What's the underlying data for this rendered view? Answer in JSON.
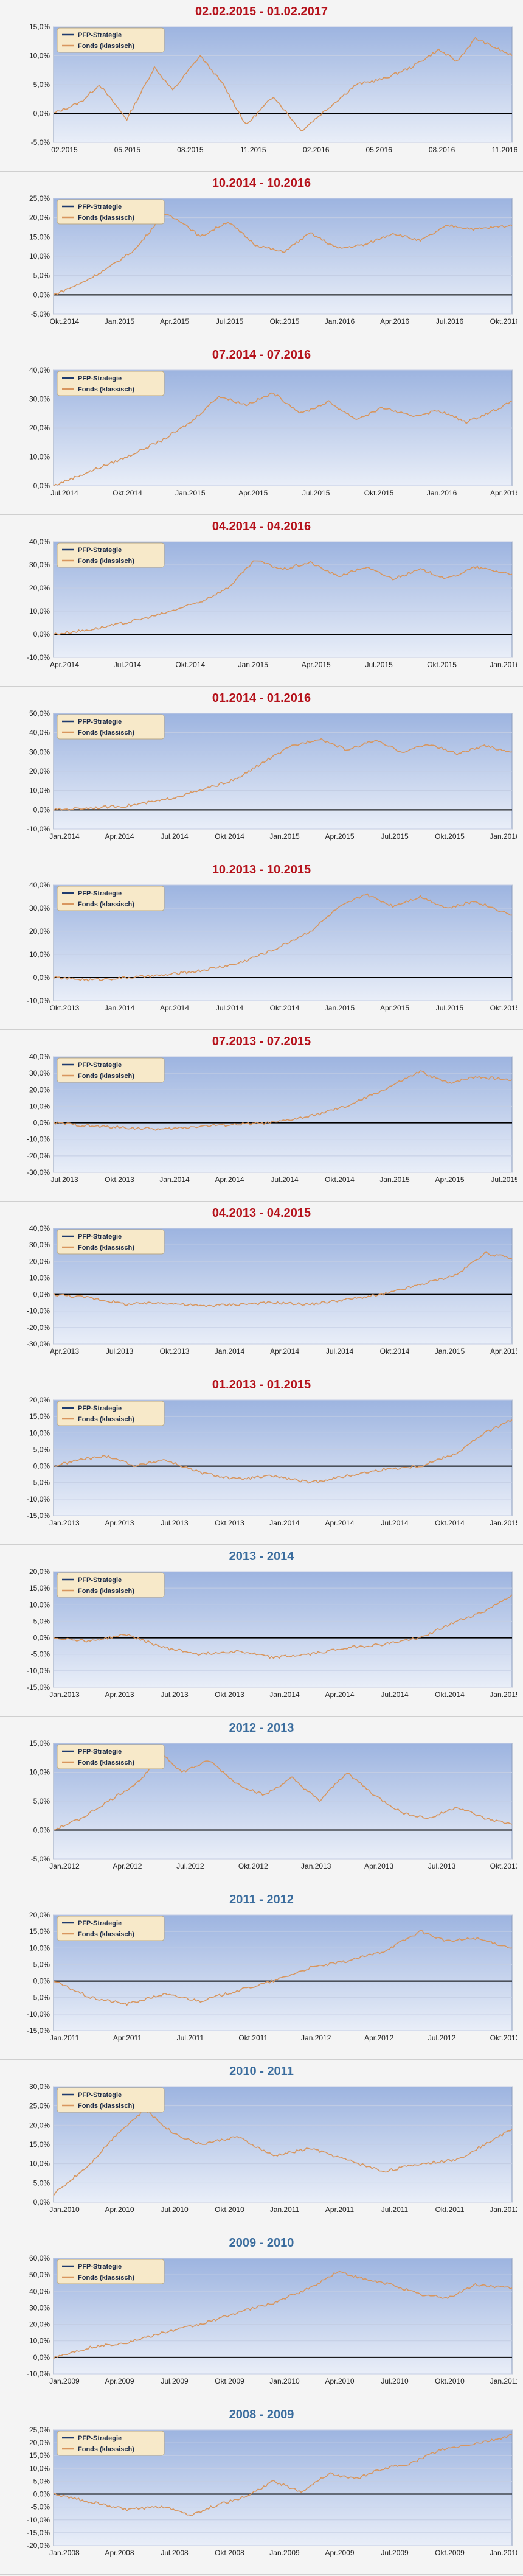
{
  "legend": {
    "strategy": "PFP-Strategie",
    "fund": "Fonds (klassisch)"
  },
  "colors": {
    "title_red": "#b5121b",
    "title_blue": "#3b6d9e",
    "fund_line": "#d8965e",
    "strategy_line": "#1f3b6e",
    "plot_top": "#9db4e0",
    "plot_bottom": "#e9eef8"
  },
  "chart_data": [
    {
      "type": "line",
      "title": "02.02.2015 - 01.02.2017",
      "title_color": "red",
      "yticks": [
        "-5,0%",
        "0,0%",
        "5,0%",
        "10,0%",
        "15,0%"
      ],
      "ylim": [
        -5,
        15
      ],
      "xticks": [
        "02.2015",
        "05.2015",
        "08.2015",
        "11.2015",
        "02.2016",
        "05.2016",
        "08.2016",
        "11.2016"
      ],
      "series": [
        {
          "name": "Fonds (klassisch)",
          "x": [
            0,
            6,
            10,
            16,
            22,
            26,
            32,
            37,
            42,
            48,
            54,
            60,
            66,
            72,
            78,
            84,
            88,
            92,
            100
          ],
          "y": [
            0,
            2,
            5,
            -1,
            8,
            4,
            10,
            5,
            -2,
            3,
            -3,
            1,
            5,
            6,
            8,
            11,
            9,
            13,
            10
          ]
        }
      ]
    },
    {
      "type": "line",
      "title": "10.2014 - 10.2016",
      "title_color": "red",
      "yticks": [
        "-5,0%",
        "0,0%",
        "5,0%",
        "10,0%",
        "15,0%",
        "20,0%",
        "25,0%"
      ],
      "ylim": [
        -5,
        25
      ],
      "xticks": [
        "Okt.2014",
        "Jan.2015",
        "Apr.2015",
        "Jul.2015",
        "Okt.2015",
        "Jan.2016",
        "Apr.2016",
        "Jul.2016",
        "Okt.2016"
      ],
      "series": [
        {
          "name": "Fonds (klassisch)",
          "x": [
            0,
            6,
            12,
            18,
            24,
            28,
            32,
            38,
            44,
            50,
            56,
            62,
            68,
            74,
            80,
            86,
            92,
            100
          ],
          "y": [
            0,
            3,
            7,
            12,
            21,
            19,
            15,
            19,
            13,
            11,
            16,
            12,
            13,
            16,
            14,
            18,
            17,
            18
          ]
        }
      ]
    },
    {
      "type": "line",
      "title": "07.2014 - 07.2016",
      "title_color": "red",
      "yticks": [
        "0,0%",
        "10,0%",
        "20,0%",
        "30,0%",
        "40,0%"
      ],
      "ylim": [
        0,
        40
      ],
      "xticks": [
        "Jul.2014",
        "Okt.2014",
        "Jan.2015",
        "Apr.2015",
        "Jul.2015",
        "Okt.2015",
        "Jan.2016",
        "Apr.2016"
      ],
      "series": [
        {
          "name": "Fonds (klassisch)",
          "x": [
            0,
            8,
            16,
            24,
            30,
            36,
            42,
            48,
            54,
            60,
            66,
            72,
            78,
            84,
            90,
            96,
            100
          ],
          "y": [
            0,
            5,
            10,
            16,
            22,
            31,
            28,
            32,
            25,
            29,
            23,
            27,
            24,
            26,
            22,
            26,
            29
          ]
        }
      ]
    },
    {
      "type": "line",
      "title": "04.2014 - 04.2016",
      "title_color": "red",
      "yticks": [
        "-10,0%",
        "0,0%",
        "10,0%",
        "20,0%",
        "30,0%",
        "40,0%"
      ],
      "ylim": [
        -10,
        40
      ],
      "xticks": [
        "Apr.2014",
        "Jul.2014",
        "Okt.2014",
        "Jan.2015",
        "Apr.2015",
        "Jul.2015",
        "Okt.2015",
        "Jan.2016"
      ],
      "series": [
        {
          "name": "Fonds (klassisch)",
          "x": [
            0,
            8,
            16,
            24,
            32,
            38,
            44,
            50,
            56,
            62,
            68,
            74,
            80,
            86,
            92,
            100
          ],
          "y": [
            0,
            2,
            5,
            9,
            14,
            20,
            32,
            28,
            31,
            25,
            29,
            24,
            28,
            24,
            29,
            26
          ]
        }
      ]
    },
    {
      "type": "line",
      "title": "01.2014 - 01.2016",
      "title_color": "red",
      "yticks": [
        "-10,0%",
        "0,0%",
        "10,0%",
        "20,0%",
        "30,0%",
        "40,0%",
        "50,0%"
      ],
      "ylim": [
        -10,
        50
      ],
      "xticks": [
        "Jan.2014",
        "Apr.2014",
        "Jul.2014",
        "Okt.2014",
        "Jan.2015",
        "Apr.2015",
        "Jul.2015",
        "Okt.2015",
        "Jan.2016"
      ],
      "series": [
        {
          "name": "Fonds (klassisch)",
          "x": [
            0,
            8,
            16,
            24,
            32,
            40,
            46,
            52,
            58,
            64,
            70,
            76,
            82,
            88,
            94,
            100
          ],
          "y": [
            0,
            1,
            2,
            5,
            10,
            16,
            25,
            33,
            37,
            31,
            36,
            30,
            34,
            29,
            33,
            30
          ]
        }
      ]
    },
    {
      "type": "line",
      "title": "10.2013 - 10.2015",
      "title_color": "red",
      "yticks": [
        "-10,0%",
        "0,0%",
        "10,0%",
        "20,0%",
        "30,0%",
        "40,0%"
      ],
      "ylim": [
        -10,
        40
      ],
      "xticks": [
        "Okt.2013",
        "Jan.2014",
        "Apr.2014",
        "Jul.2014",
        "Okt.2014",
        "Jan.2015",
        "Apr.2015",
        "Jul.2015",
        "Okt.2015"
      ],
      "series": [
        {
          "name": "Fonds (klassisch)",
          "x": [
            0,
            8,
            16,
            24,
            32,
            40,
            48,
            56,
            62,
            68,
            74,
            80,
            86,
            92,
            100
          ],
          "y": [
            0,
            -1,
            0,
            1,
            3,
            6,
            12,
            20,
            30,
            36,
            31,
            35,
            30,
            33,
            27
          ]
        }
      ]
    },
    {
      "type": "line",
      "title": "07.2013 - 07.2015",
      "title_color": "red",
      "yticks": [
        "-30,0%",
        "-20,0%",
        "-10,0%",
        "0,0%",
        "10,0%",
        "20,0%",
        "30,0%",
        "40,0%"
      ],
      "ylim": [
        -30,
        40
      ],
      "xticks": [
        "Jul.2013",
        "Okt.2013",
        "Jan.2014",
        "Apr.2014",
        "Jul.2014",
        "Okt.2014",
        "Jan.2015",
        "Apr.2015",
        "Jul.2015"
      ],
      "series": [
        {
          "name": "Fonds (klassisch)",
          "x": [
            0,
            8,
            16,
            24,
            32,
            40,
            48,
            56,
            64,
            72,
            80,
            86,
            92,
            100
          ],
          "y": [
            0,
            -2,
            -3,
            -4,
            -2,
            -1,
            0,
            4,
            10,
            20,
            31,
            24,
            28,
            26
          ]
        }
      ]
    },
    {
      "type": "line",
      "title": "04.2013 - 04.2015",
      "title_color": "red",
      "yticks": [
        "-30,0%",
        "-20,0%",
        "-10,0%",
        "0,0%",
        "10,0%",
        "20,0%",
        "30,0%",
        "40,0%"
      ],
      "ylim": [
        -30,
        40
      ],
      "xticks": [
        "Apr.2013",
        "Jul.2013",
        "Okt.2013",
        "Jan.2014",
        "Apr.2014",
        "Jul.2014",
        "Okt.2014",
        "Jan.2015",
        "Apr.2015"
      ],
      "series": [
        {
          "name": "Fonds (klassisch)",
          "x": [
            0,
            8,
            16,
            24,
            32,
            40,
            48,
            56,
            64,
            72,
            80,
            88,
            94,
            100
          ],
          "y": [
            0,
            -2,
            -6,
            -5,
            -7,
            -6,
            -5,
            -6,
            -3,
            0,
            6,
            12,
            25,
            22
          ]
        }
      ]
    },
    {
      "type": "line",
      "title": "01.2013 - 01.2015",
      "title_color": "red",
      "yticks": [
        "-15,0%",
        "-10,0%",
        "-5,0%",
        "0,0%",
        "5,0%",
        "10,0%",
        "15,0%",
        "20,0%"
      ],
      "ylim": [
        -15,
        20
      ],
      "xticks": [
        "Jan.2013",
        "Apr.2013",
        "Jul.2013",
        "Okt.2013",
        "Jan.2014",
        "Apr.2014",
        "Jul.2014",
        "Okt.2014",
        "Jan.2015"
      ],
      "series": [
        {
          "name": "Fonds (klassisch)",
          "x": [
            0,
            6,
            12,
            18,
            24,
            32,
            40,
            48,
            56,
            64,
            72,
            80,
            88,
            94,
            100
          ],
          "y": [
            0,
            2,
            3,
            0,
            2,
            -2,
            -4,
            -3,
            -5,
            -3,
            -1,
            0,
            4,
            10,
            14
          ]
        }
      ]
    },
    {
      "type": "line",
      "title": "2013 - 2014",
      "title_color": "blue",
      "yticks": [
        "-15,0%",
        "-10,0%",
        "-5,0%",
        "0,0%",
        "5,0%",
        "10,0%",
        "15,0%",
        "20,0%"
      ],
      "ylim": [
        -15,
        20
      ],
      "xticks": [
        "Jan.2013",
        "Apr.2013",
        "Jul.2013",
        "Okt.2013",
        "Jan.2014",
        "Apr.2014",
        "Jul.2014",
        "Okt.2014",
        "Jan.2015"
      ],
      "series": [
        {
          "name": "Fonds (klassisch)",
          "x": [
            0,
            8,
            16,
            24,
            32,
            40,
            48,
            56,
            64,
            72,
            80,
            88,
            94,
            100
          ],
          "y": [
            0,
            -1,
            1,
            -3,
            -5,
            -4,
            -6,
            -5,
            -3,
            -2,
            0,
            5,
            8,
            13
          ]
        }
      ]
    },
    {
      "type": "line",
      "title": "2012 - 2013",
      "title_color": "blue",
      "yticks": [
        "-5,0%",
        "0,0%",
        "5,0%",
        "10,0%",
        "15,0%"
      ],
      "ylim": [
        -5,
        15
      ],
      "xticks": [
        "Jan.2012",
        "Apr.2012",
        "Jul.2012",
        "Okt.2012",
        "Jan.2013",
        "Apr.2013",
        "Jul.2013",
        "Okt.2013"
      ],
      "series": [
        {
          "name": "Fonds (klassisch)",
          "x": [
            0,
            6,
            12,
            18,
            24,
            28,
            34,
            40,
            46,
            52,
            58,
            64,
            70,
            76,
            82,
            88,
            94,
            100
          ],
          "y": [
            0,
            2,
            5,
            8,
            13,
            10,
            12,
            8,
            6,
            9,
            5,
            10,
            6,
            3,
            2,
            4,
            2,
            1
          ]
        }
      ]
    },
    {
      "type": "line",
      "title": "2011 - 2012",
      "title_color": "blue",
      "yticks": [
        "-15,0%",
        "-10,0%",
        "-5,0%",
        "0,0%",
        "5,0%",
        "10,0%",
        "15,0%",
        "20,0%"
      ],
      "ylim": [
        -15,
        20
      ],
      "xticks": [
        "Jan.2011",
        "Apr.2011",
        "Jul.2011",
        "Okt.2011",
        "Jan.2012",
        "Apr.2012",
        "Jul.2012",
        "Okt.2012"
      ],
      "series": [
        {
          "name": "Fonds (klassisch)",
          "x": [
            0,
            8,
            16,
            24,
            32,
            40,
            48,
            56,
            64,
            72,
            80,
            86,
            92,
            100
          ],
          "y": [
            0,
            -5,
            -7,
            -4,
            -6,
            -3,
            0,
            4,
            6,
            9,
            15,
            12,
            13,
            10
          ]
        }
      ]
    },
    {
      "type": "line",
      "title": "2010 - 2011",
      "title_color": "blue",
      "yticks": [
        "0,0%",
        "5,0%",
        "10,0%",
        "15,0%",
        "20,0%",
        "25,0%",
        "30,0%"
      ],
      "ylim": [
        0,
        30
      ],
      "xticks": [
        "Jan.2010",
        "Apr.2010",
        "Jul.2010",
        "Okt.2010",
        "Jan.2011",
        "Apr.2011",
        "Jul.2011",
        "Okt.2011",
        "Jan.2012"
      ],
      "series": [
        {
          "name": "Fonds (klassisch)",
          "x": [
            0,
            8,
            14,
            20,
            26,
            32,
            40,
            48,
            56,
            64,
            72,
            80,
            88,
            94,
            100
          ],
          "y": [
            2,
            10,
            18,
            24,
            18,
            15,
            17,
            12,
            14,
            11,
            8,
            10,
            11,
            15,
            19
          ]
        }
      ]
    },
    {
      "type": "line",
      "title": "2009 - 2010",
      "title_color": "blue",
      "yticks": [
        "-10,0%",
        "0,0%",
        "10,0%",
        "20,0%",
        "30,0%",
        "40,0%",
        "50,0%",
        "60,0%"
      ],
      "ylim": [
        -10,
        60
      ],
      "xticks": [
        "Jan.2009",
        "Apr.2009",
        "Jul.2009",
        "Okt.2009",
        "Jan.2010",
        "Apr.2010",
        "Jul.2010",
        "Okt.2010",
        "Jan.2011"
      ],
      "series": [
        {
          "name": "Fonds (klassisch)",
          "x": [
            0,
            8,
            16,
            24,
            32,
            40,
            48,
            56,
            62,
            68,
            74,
            80,
            86,
            92,
            100
          ],
          "y": [
            0,
            6,
            9,
            15,
            20,
            27,
            33,
            42,
            52,
            47,
            44,
            38,
            36,
            44,
            42
          ]
        }
      ]
    },
    {
      "type": "line",
      "title": "2008 - 2009",
      "title_color": "blue",
      "yticks": [
        "-20,0%",
        "-15,0%",
        "-10,0%",
        "-5,0%",
        "0,0%",
        "5,0%",
        "10,0%",
        "15,0%",
        "20,0%",
        "25,0%"
      ],
      "ylim": [
        -20,
        25
      ],
      "xticks": [
        "Jan.2008",
        "Apr.2008",
        "Jul.2008",
        "Okt.2008",
        "Jan.2009",
        "Apr.2009",
        "Jul.2009",
        "Okt.2009",
        "Jan.2010"
      ],
      "series": [
        {
          "name": "Fonds (klassisch)",
          "x": [
            0,
            8,
            16,
            24,
            30,
            36,
            42,
            48,
            54,
            60,
            66,
            72,
            78,
            84,
            90,
            96,
            100
          ],
          "y": [
            0,
            -3,
            -6,
            -5,
            -8,
            -4,
            -1,
            5,
            1,
            8,
            6,
            10,
            12,
            17,
            19,
            21,
            23
          ]
        }
      ]
    }
  ]
}
